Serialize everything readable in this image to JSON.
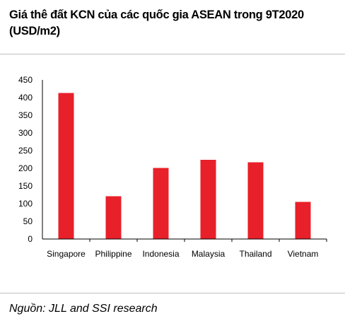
{
  "header": {
    "title": "Giá thê đất KCN của các quốc gia ASEAN trong 9T2020 (USD/m2)"
  },
  "footer": {
    "source": "Nguồn: JLL and SSI research"
  },
  "colors": {
    "bar": "#e8202a",
    "axis": "#000000",
    "rule": "#bfbfbf"
  },
  "chart_data": {
    "type": "bar",
    "title": "Giá thê đất KCN của các quốc gia ASEAN trong 9T2020 (USD/m2)",
    "categories": [
      "Singapore",
      "Philippine",
      "Indonesia",
      "Malaysia",
      "Thailand",
      "Vietnam"
    ],
    "values": [
      413,
      121,
      201,
      224,
      217,
      105
    ],
    "ylim": [
      0,
      450
    ],
    "yticks": [
      0,
      50,
      100,
      150,
      200,
      250,
      300,
      350,
      400,
      450
    ],
    "xlabel": "",
    "ylabel": "",
    "grid": false,
    "legend": "none"
  }
}
